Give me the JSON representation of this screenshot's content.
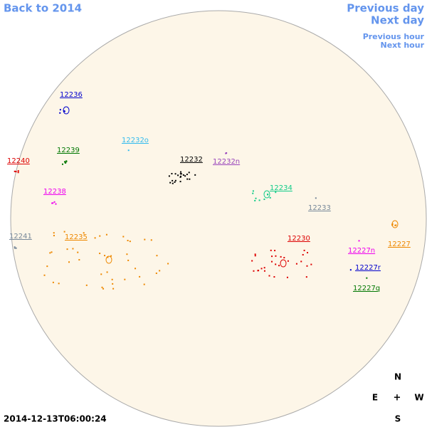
{
  "nav": {
    "back": "Back to 2014",
    "previous_day": "Previous day",
    "next_day": "Next day",
    "previous_hour": "Previous hour",
    "next_hour": "Next hour"
  },
  "regions": [
    {
      "label": "12236",
      "color": "#0000cc"
    },
    {
      "label": "12239",
      "color": "#007700"
    },
    {
      "label": "12232o",
      "color": "#33bbee"
    },
    {
      "label": "12240",
      "color": "#dd0000"
    },
    {
      "label": "12232",
      "color": "#000000"
    },
    {
      "label": "12232n",
      "color": "#9944bb"
    },
    {
      "label": "12238",
      "color": "#ee00ee"
    },
    {
      "label": "12234",
      "color": "#11cc88"
    },
    {
      "label": "12233",
      "color": "#778899"
    },
    {
      "label": "12241",
      "color": "#778899"
    },
    {
      "label": "12235",
      "color": "#ee8800"
    },
    {
      "label": "12230",
      "color": "#dd0000"
    },
    {
      "label": "12227",
      "color": "#ee8800"
    },
    {
      "label": "12227n",
      "color": "#ee00ee"
    },
    {
      "label": "12227r",
      "color": "#0000cc"
    },
    {
      "label": "12227q",
      "color": "#007700"
    }
  ],
  "timestamp": "2014-12-13T06:00:24",
  "compass": {
    "n": "N",
    "e": "E",
    "center": "+",
    "w": "W",
    "s": "S"
  }
}
